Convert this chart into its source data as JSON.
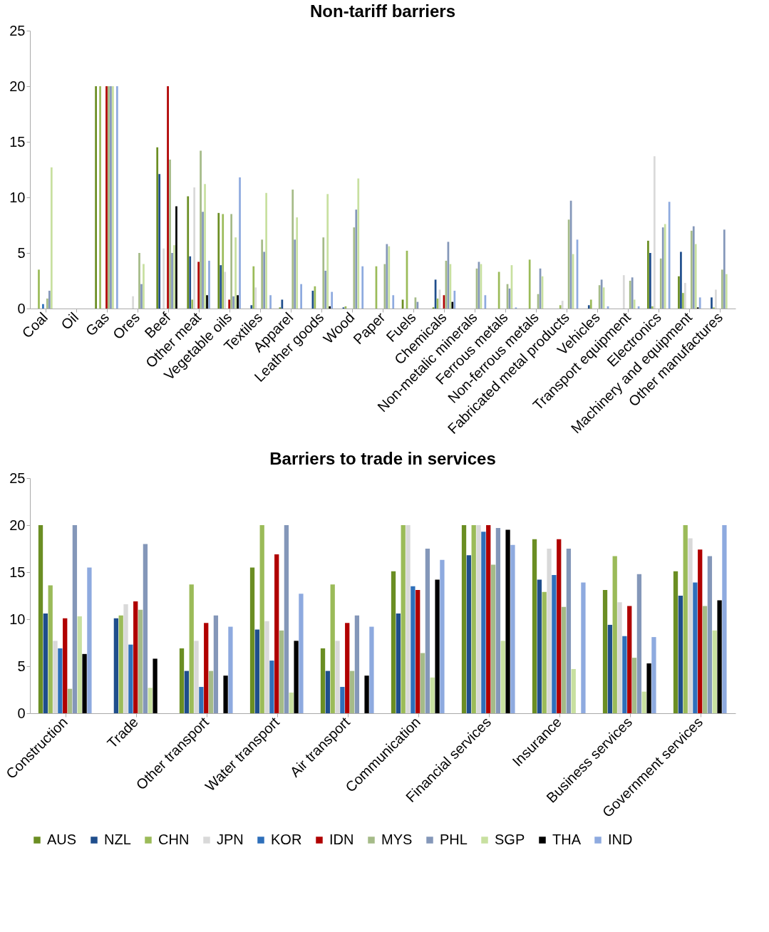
{
  "chart_data": [
    {
      "type": "bar",
      "title": "Non-tariff barriers",
      "categories": [
        "Coal",
        "Oil",
        "Gas",
        "Ores",
        "Beef",
        "Other meat",
        "Vegetable oils",
        "Textiles",
        "Apparel",
        "Leather goods",
        "Wood",
        "Paper",
        "Fuels",
        "Chemicals",
        "Non-metalic minerals",
        "Ferrous metals",
        "Non-ferrous metals",
        "Fabricated metal products",
        "Vehicles",
        "Transport equipment",
        "Electronics",
        "Machinery and equipment",
        "Other manufactures"
      ],
      "series": [
        {
          "name": "AUS",
          "color": "#6b8e23",
          "values": [
            0,
            0,
            20,
            0,
            14.5,
            10.1,
            8.6,
            0,
            0.1,
            0,
            0,
            0,
            0.8,
            0.1,
            0,
            0,
            0,
            0,
            0,
            0,
            6.1,
            2.9,
            0
          ]
        },
        {
          "name": "NZL",
          "color": "#1f4e8c",
          "values": [
            0,
            0,
            0,
            0,
            12.1,
            4.7,
            3.9,
            0.3,
            0.8,
            1.6,
            0.1,
            0,
            0,
            2.6,
            0,
            0,
            0,
            0,
            0.3,
            0,
            5.0,
            5.1,
            1.0
          ]
        },
        {
          "name": "CHN",
          "color": "#9bbb59",
          "values": [
            3.5,
            0,
            20,
            0,
            0,
            0.8,
            8.5,
            3.8,
            0,
            2.0,
            0.2,
            3.8,
            5.2,
            0.9,
            0,
            3.3,
            4.4,
            0.3,
            0.8,
            0,
            0.2,
            1.4,
            0.1
          ]
        },
        {
          "name": "JPN",
          "color": "#d9d9d9",
          "values": [
            0,
            0,
            0,
            1.1,
            5.4,
            10.9,
            3.3,
            1.9,
            0,
            0,
            0,
            0,
            0,
            1.7,
            0,
            0,
            0,
            0.7,
            0,
            3.0,
            13.7,
            2.3,
            1.7
          ]
        },
        {
          "name": "KOR",
          "color": "#2e6fba",
          "values": [
            0.4,
            0,
            0,
            0,
            0,
            0,
            0,
            0,
            0,
            0,
            0,
            0,
            0,
            0,
            0,
            0,
            0,
            0,
            0,
            0,
            0,
            0,
            0
          ]
        },
        {
          "name": "IDN",
          "color": "#b00000",
          "values": [
            0,
            0,
            20,
            0,
            20,
            4.2,
            0.8,
            0,
            0,
            0,
            0,
            0,
            0,
            1.2,
            0,
            0,
            0,
            0,
            0,
            0,
            0,
            0,
            0
          ]
        },
        {
          "name": "MYS",
          "color": "#a5bb88",
          "values": [
            0.9,
            0,
            20,
            5.0,
            13.4,
            14.2,
            8.5,
            6.2,
            10.7,
            6.4,
            7.3,
            4.0,
            1.0,
            4.3,
            3.6,
            2.2,
            1.3,
            8.0,
            2.1,
            2.5,
            4.5,
            7.0,
            3.5
          ]
        },
        {
          "name": "PHL",
          "color": "#8497b9",
          "values": [
            1.6,
            0,
            20,
            2.2,
            5.0,
            8.7,
            1.1,
            5.1,
            6.2,
            3.4,
            8.9,
            5.8,
            0.6,
            6.0,
            4.2,
            1.8,
            3.6,
            9.7,
            2.6,
            2.8,
            7.3,
            7.4,
            7.1
          ]
        },
        {
          "name": "SGP",
          "color": "#c8e0a0",
          "values": [
            12.7,
            0,
            20,
            4.0,
            5.7,
            11.2,
            6.4,
            10.4,
            8.2,
            10.3,
            11.7,
            5.6,
            0,
            4.0,
            4.0,
            3.9,
            2.9,
            4.9,
            1.9,
            0.8,
            7.6,
            5.8,
            3.1
          ]
        },
        {
          "name": "THA",
          "color": "#000000",
          "values": [
            0,
            0,
            0,
            0,
            9.2,
            1.2,
            1.2,
            0,
            0,
            0.2,
            0,
            0,
            0,
            0.6,
            0,
            0,
            0,
            0,
            0,
            0,
            0,
            0.1,
            0
          ]
        },
        {
          "name": "IND",
          "color": "#8eaadf",
          "values": [
            0,
            0,
            20,
            0,
            0,
            4.3,
            11.8,
            1.2,
            2.2,
            1.5,
            3.8,
            1.2,
            0,
            1.6,
            1.2,
            0.1,
            0,
            6.2,
            0.2,
            0.2,
            9.6,
            1.0,
            0
          ]
        }
      ],
      "ylim": [
        0,
        25
      ],
      "yticks": [
        0,
        5,
        10,
        15,
        20,
        25
      ],
      "grid": false,
      "legend": "bottom"
    },
    {
      "type": "bar",
      "title": "Barriers to trade in services",
      "categories": [
        "Construction",
        "Trade",
        "Other transport",
        "Water transport",
        "Air transport",
        "Communication",
        "Financial services",
        "Insurance",
        "Business services",
        "Government services"
      ],
      "series": [
        {
          "name": "AUS",
          "color": "#6b8e23",
          "values": [
            20,
            0,
            6.9,
            15.5,
            6.9,
            15.1,
            20,
            18.5,
            13.1,
            15.1
          ]
        },
        {
          "name": "NZL",
          "color": "#1f4e8c",
          "values": [
            10.6,
            10.1,
            4.5,
            8.9,
            4.5,
            10.6,
            16.8,
            14.2,
            9.4,
            12.5
          ]
        },
        {
          "name": "CHN",
          "color": "#9bbb59",
          "values": [
            13.6,
            10.4,
            13.7,
            20,
            13.7,
            20,
            20,
            12.9,
            16.7,
            20
          ]
        },
        {
          "name": "JPN",
          "color": "#d9d9d9",
          "values": [
            7.7,
            11.6,
            7.7,
            9.8,
            7.7,
            20,
            20,
            17.5,
            11.8,
            18.6
          ]
        },
        {
          "name": "KOR",
          "color": "#2e6fba",
          "values": [
            6.9,
            7.3,
            2.8,
            5.6,
            2.8,
            13.5,
            19.3,
            14.7,
            8.2,
            13.9
          ]
        },
        {
          "name": "IDN",
          "color": "#b00000",
          "values": [
            10.1,
            11.9,
            9.6,
            16.9,
            9.6,
            13.1,
            20,
            18.5,
            11.4,
            17.4
          ]
        },
        {
          "name": "MYS",
          "color": "#a5bb88",
          "values": [
            2.6,
            11.0,
            4.5,
            8.8,
            4.5,
            6.4,
            15.8,
            11.3,
            5.9,
            11.4
          ]
        },
        {
          "name": "PHL",
          "color": "#8497b9",
          "values": [
            20,
            18,
            10.4,
            20,
            10.4,
            17.5,
            19.7,
            17.5,
            14.8,
            16.7
          ]
        },
        {
          "name": "SGP",
          "color": "#c8e0a0",
          "values": [
            10.3,
            2.7,
            0,
            2.2,
            0,
            3.8,
            7.7,
            4.7,
            2.3,
            8.8
          ]
        },
        {
          "name": "THA",
          "color": "#000000",
          "values": [
            6.3,
            5.8,
            4.0,
            7.7,
            4.0,
            14.2,
            19.5,
            0,
            5.3,
            12.0
          ]
        },
        {
          "name": "IND",
          "color": "#8eaadf",
          "values": [
            15.5,
            0,
            9.2,
            12.7,
            9.2,
            16.3,
            17.9,
            13.9,
            8.1,
            20
          ]
        }
      ],
      "ylim": [
        0,
        25
      ],
      "yticks": [
        0,
        5,
        10,
        15,
        20,
        25
      ],
      "grid": false,
      "legend": "bottom"
    }
  ]
}
